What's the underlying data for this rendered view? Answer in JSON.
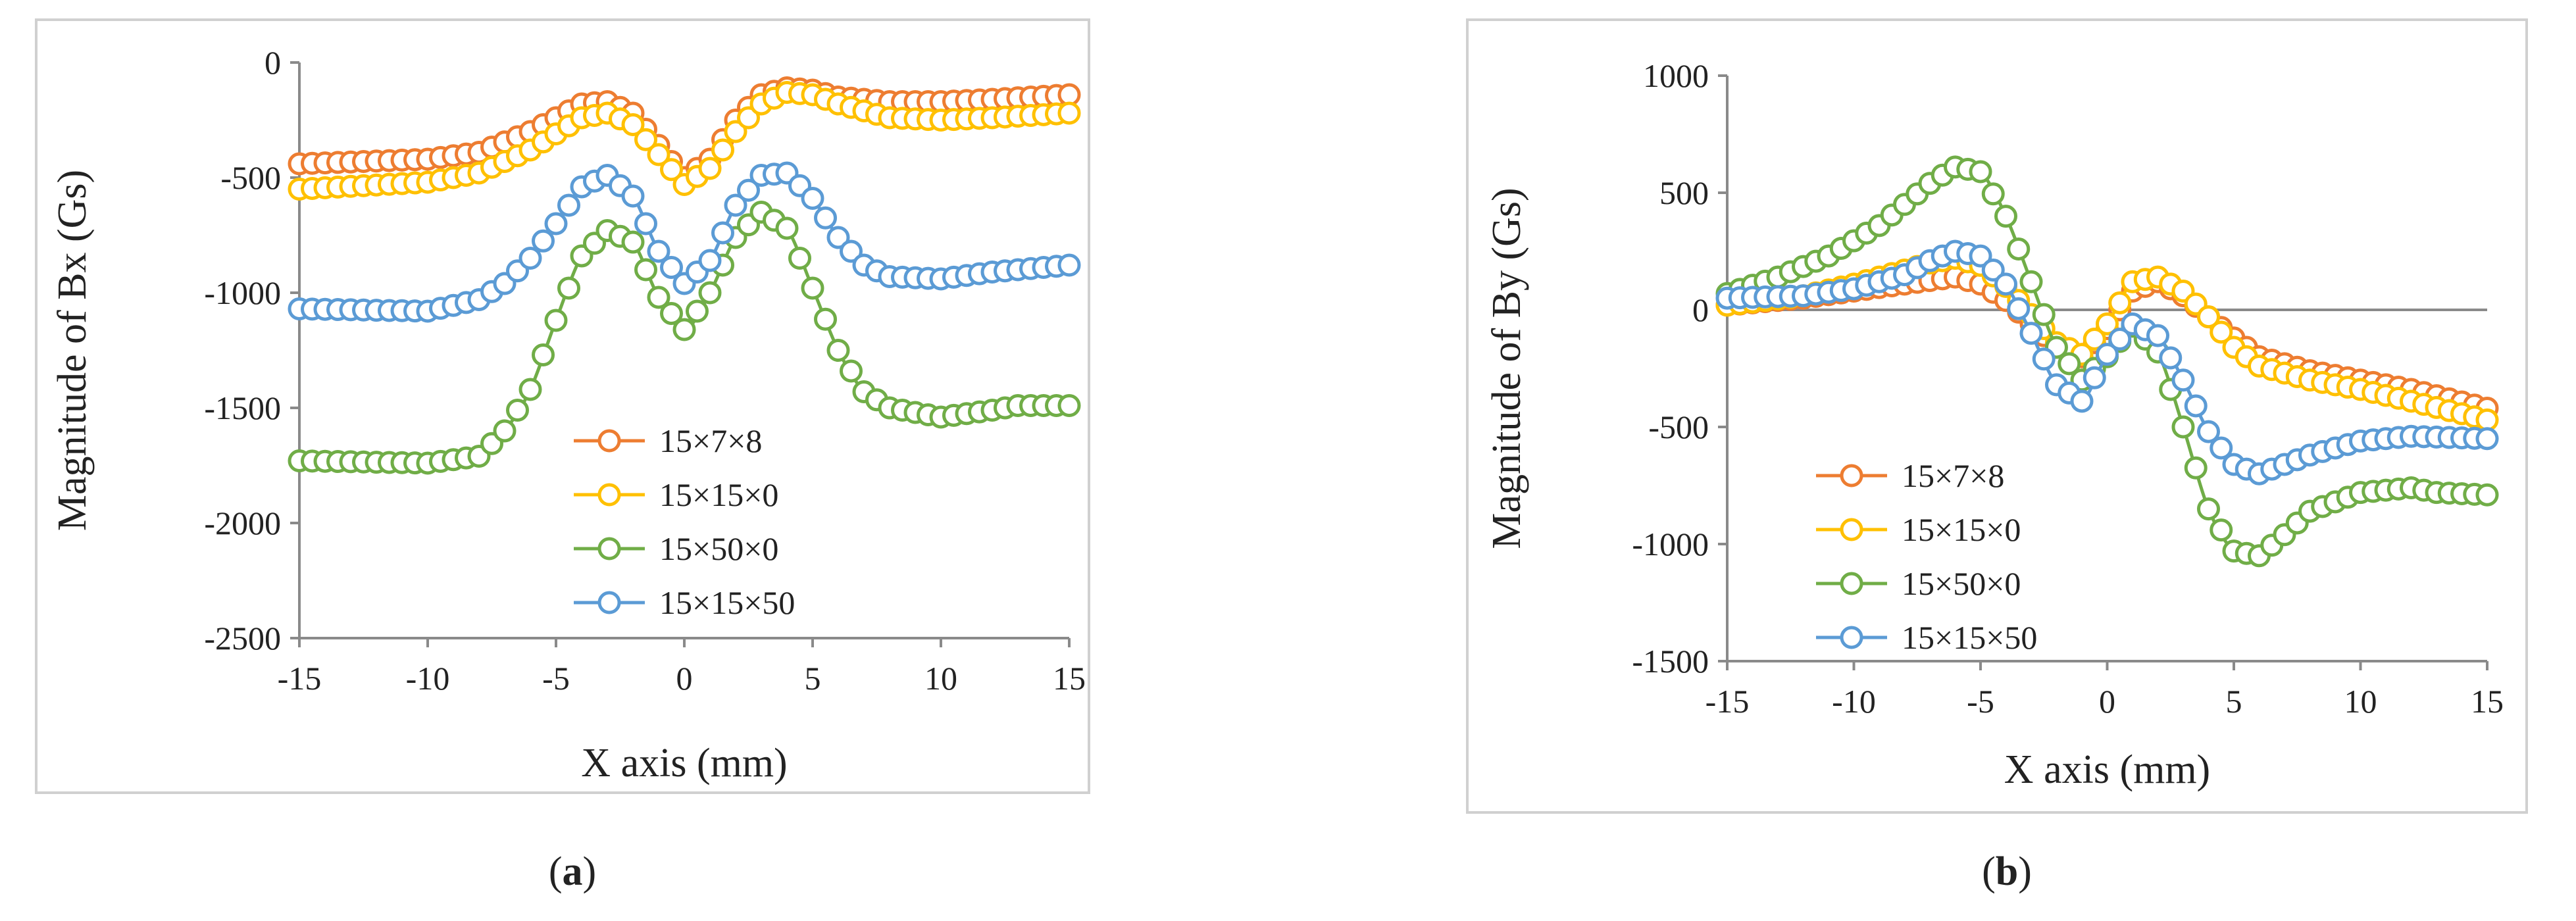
{
  "chart_data": [
    {
      "type": "line",
      "panel": "a",
      "caption": "(a)",
      "caption_letter": "a",
      "xlabel": "X axis (mm)",
      "ylabel": "Magnitude of Bx (Gs)",
      "xlim": [
        -15,
        15
      ],
      "ylim": [
        -2500,
        0
      ],
      "xticks": [
        -15,
        -10,
        -5,
        0,
        5,
        10,
        15
      ],
      "yticks": [
        0,
        -500,
        -1000,
        -1500,
        -2000,
        -2500
      ],
      "legend_position": "center-right",
      "series": [
        {
          "name": "15×7×8",
          "color": "#ED7D31",
          "x": [
            -15,
            -10,
            -8,
            -6,
            -4,
            -3,
            -2,
            -1,
            0,
            1,
            2,
            3,
            4,
            5,
            6,
            8,
            10,
            12,
            15
          ],
          "y": [
            -440,
            -420,
            -390,
            -300,
            -180,
            -170,
            -220,
            -360,
            -500,
            -420,
            -250,
            -140,
            -110,
            -120,
            -150,
            -170,
            -170,
            -160,
            -140
          ]
        },
        {
          "name": "15×15×0",
          "color": "#FFC000",
          "x": [
            -15,
            -10,
            -8,
            -6,
            -4,
            -3,
            -2,
            -1,
            0,
            1,
            2,
            3,
            4,
            5,
            6,
            8,
            10,
            12,
            15
          ],
          "y": [
            -550,
            -520,
            -480,
            -380,
            -240,
            -220,
            -270,
            -400,
            -530,
            -460,
            -300,
            -180,
            -130,
            -140,
            -180,
            -240,
            -250,
            -240,
            -220
          ]
        },
        {
          "name": "15×50×0",
          "color": "#70AD47",
          "x": [
            -15,
            -10,
            -8,
            -7,
            -6,
            -5,
            -4,
            -3,
            -2,
            -1,
            0,
            1,
            2,
            3,
            4,
            5,
            6,
            7,
            8,
            10,
            12,
            13,
            15
          ],
          "y": [
            -1730,
            -1740,
            -1710,
            -1600,
            -1420,
            -1120,
            -840,
            -730,
            -780,
            -1020,
            -1160,
            -1000,
            -760,
            -650,
            -720,
            -980,
            -1250,
            -1430,
            -1500,
            -1540,
            -1510,
            -1490,
            -1490
          ]
        },
        {
          "name": "15×15×50",
          "color": "#5B9BD5",
          "x": [
            -15,
            -10,
            -8,
            -7,
            -6,
            -5,
            -4,
            -3,
            -2,
            -1,
            0,
            1,
            2,
            3,
            4,
            5,
            6,
            7,
            8,
            10,
            12,
            15
          ],
          "y": [
            -1070,
            -1080,
            -1030,
            -960,
            -850,
            -700,
            -540,
            -490,
            -580,
            -820,
            -960,
            -860,
            -620,
            -490,
            -480,
            -590,
            -760,
            -880,
            -930,
            -940,
            -910,
            -880
          ]
        }
      ]
    },
    {
      "type": "line",
      "panel": "b",
      "caption": "(b)",
      "caption_letter": "b",
      "xlabel": "X axis (mm)",
      "ylabel": "Magnitude of By (Gs)",
      "xlim": [
        -15,
        15
      ],
      "ylim": [
        -1500,
        1000
      ],
      "xticks": [
        -15,
        -10,
        -5,
        0,
        5,
        10,
        15
      ],
      "yticks": [
        1000,
        500,
        0,
        -500,
        -1000,
        -1500
      ],
      "legend_position": "lower-left",
      "series": [
        {
          "name": "15×7×8",
          "color": "#ED7D31",
          "x": [
            -15,
            -12,
            -10,
            -8,
            -6,
            -5,
            -4,
            -3,
            -2,
            -1,
            0,
            1,
            2,
            3,
            4,
            5,
            6,
            8,
            10,
            12,
            15
          ],
          "y": [
            20,
            50,
            80,
            110,
            140,
            110,
            40,
            -60,
            -160,
            -200,
            -80,
            80,
            120,
            60,
            -30,
            -120,
            -200,
            -260,
            -300,
            -340,
            -420
          ]
        },
        {
          "name": "15×15×0",
          "color": "#FFC000",
          "x": [
            -15,
            -12,
            -10,
            -8,
            -7,
            -6,
            -5,
            -4,
            -3,
            -2,
            -1,
            0,
            1,
            2,
            3,
            4,
            5,
            6,
            8,
            10,
            12,
            15
          ],
          "y": [
            20,
            60,
            110,
            170,
            200,
            220,
            190,
            100,
            -20,
            -140,
            -190,
            -60,
            120,
            140,
            80,
            -30,
            -160,
            -240,
            -300,
            -340,
            -390,
            -470
          ]
        },
        {
          "name": "15×50×0",
          "color": "#70AD47",
          "x": [
            -15,
            -13,
            -11,
            -9,
            -8,
            -7,
            -6,
            -5,
            -4,
            -3,
            -2,
            -1,
            0,
            1,
            2,
            3,
            4,
            5,
            6,
            7,
            8,
            10,
            12,
            13,
            15
          ],
          "y": [
            70,
            140,
            230,
            360,
            450,
            540,
            610,
            590,
            400,
            120,
            -160,
            -300,
            -200,
            -70,
            -180,
            -500,
            -850,
            -1030,
            -1050,
            -960,
            -860,
            -780,
            -760,
            -780,
            -790
          ]
        },
        {
          "name": "15×15×50",
          "color": "#5B9BD5",
          "x": [
            -15,
            -12,
            -10,
            -8,
            -7,
            -6,
            -5,
            -4,
            -3,
            -2,
            -1,
            0,
            1,
            2,
            3,
            4,
            5,
            6,
            8,
            10,
            12,
            15
          ],
          "y": [
            50,
            60,
            90,
            150,
            210,
            250,
            230,
            110,
            -100,
            -320,
            -390,
            -190,
            -60,
            -110,
            -300,
            -520,
            -660,
            -700,
            -620,
            -560,
            -540,
            -550
          ]
        }
      ]
    }
  ]
}
